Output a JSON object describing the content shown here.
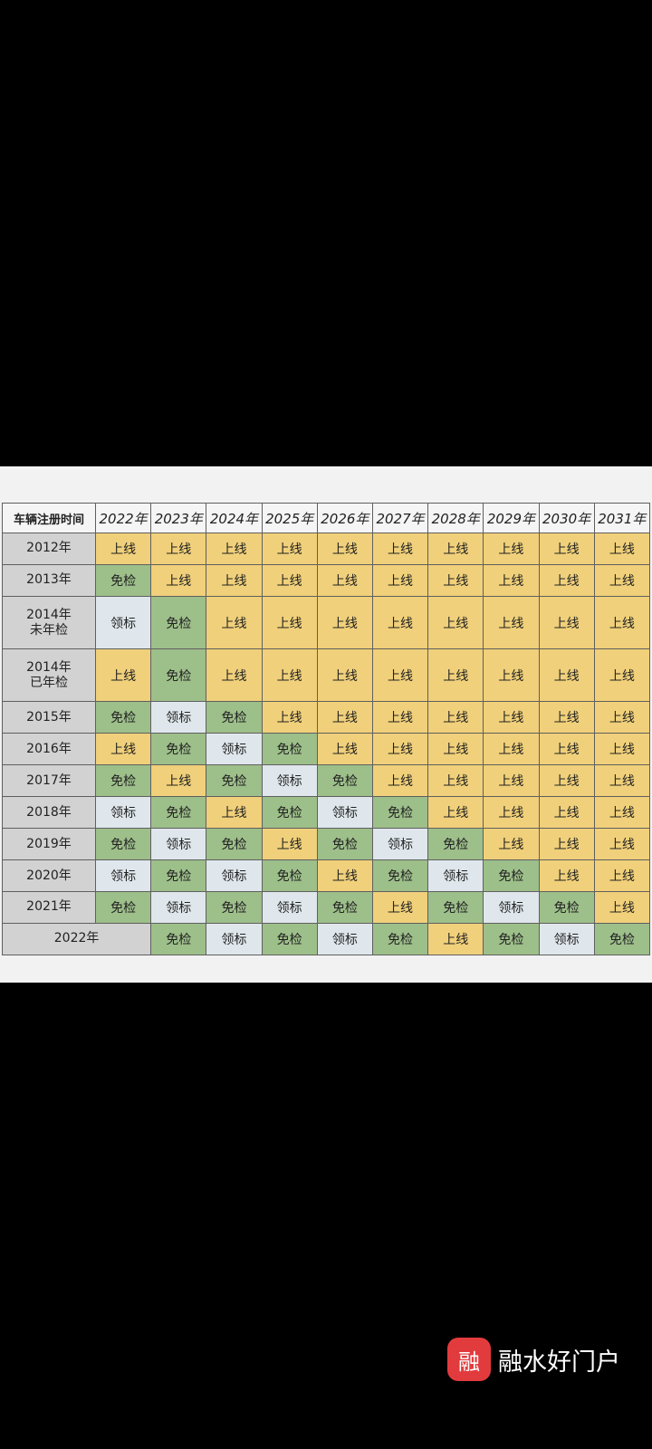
{
  "table": {
    "corner": "车辆注册时间",
    "years": [
      "2022年",
      "2023年",
      "2024年",
      "2025年",
      "2026年",
      "2027年",
      "2028年",
      "2029年",
      "2030年",
      "2031年"
    ],
    "rows": [
      {
        "label": [
          "2012年"
        ],
        "span": 0,
        "cells": [
          "上线",
          "上线",
          "上线",
          "上线",
          "上线",
          "上线",
          "上线",
          "上线",
          "上线",
          "上线"
        ]
      },
      {
        "label": [
          "2013年"
        ],
        "span": 0,
        "cells": [
          "免检",
          "上线",
          "上线",
          "上线",
          "上线",
          "上线",
          "上线",
          "上线",
          "上线",
          "上线"
        ]
      },
      {
        "label": [
          "2014年",
          "未年检"
        ],
        "span": 0,
        "cells": [
          "领标",
          "免检",
          "上线",
          "上线",
          "上线",
          "上线",
          "上线",
          "上线",
          "上线",
          "上线"
        ]
      },
      {
        "label": [
          "2014年",
          "已年检"
        ],
        "span": 0,
        "cells": [
          "上线",
          "免检",
          "上线",
          "上线",
          "上线",
          "上线",
          "上线",
          "上线",
          "上线",
          "上线"
        ]
      },
      {
        "label": [
          "2015年"
        ],
        "span": 0,
        "cells": [
          "免检",
          "领标",
          "免检",
          "上线",
          "上线",
          "上线",
          "上线",
          "上线",
          "上线",
          "上线"
        ]
      },
      {
        "label": [
          "2016年"
        ],
        "span": 0,
        "cells": [
          "上线",
          "免检",
          "领标",
          "免检",
          "上线",
          "上线",
          "上线",
          "上线",
          "上线",
          "上线"
        ]
      },
      {
        "label": [
          "2017年"
        ],
        "span": 0,
        "cells": [
          "免检",
          "上线",
          "免检",
          "领标",
          "免检",
          "上线",
          "上线",
          "上线",
          "上线",
          "上线"
        ]
      },
      {
        "label": [
          "2018年"
        ],
        "span": 0,
        "cells": [
          "领标",
          "免检",
          "上线",
          "免检",
          "领标",
          "免检",
          "上线",
          "上线",
          "上线",
          "上线"
        ]
      },
      {
        "label": [
          "2019年"
        ],
        "span": 0,
        "cells": [
          "免检",
          "领标",
          "免检",
          "上线",
          "免检",
          "领标",
          "免检",
          "上线",
          "上线",
          "上线"
        ]
      },
      {
        "label": [
          "2020年"
        ],
        "span": 0,
        "cells": [
          "领标",
          "免检",
          "领标",
          "免检",
          "上线",
          "免检",
          "领标",
          "免检",
          "上线",
          "上线"
        ]
      },
      {
        "label": [
          "2021年"
        ],
        "span": 0,
        "cells": [
          "免检",
          "领标",
          "免检",
          "领标",
          "免检",
          "上线",
          "免检",
          "领标",
          "免检",
          "上线"
        ]
      },
      {
        "label": [
          "2022年"
        ],
        "span": 2,
        "cells": [
          "免检",
          "领标",
          "免检",
          "领标",
          "免检",
          "上线",
          "免检",
          "领标",
          "免检"
        ]
      }
    ]
  },
  "status_colors": {
    "上线": "#f0d07a",
    "免检": "#9dbf8a",
    "领标": "#dfe7ec"
  },
  "watermark": {
    "badge": "融",
    "text": "融水好门户"
  }
}
